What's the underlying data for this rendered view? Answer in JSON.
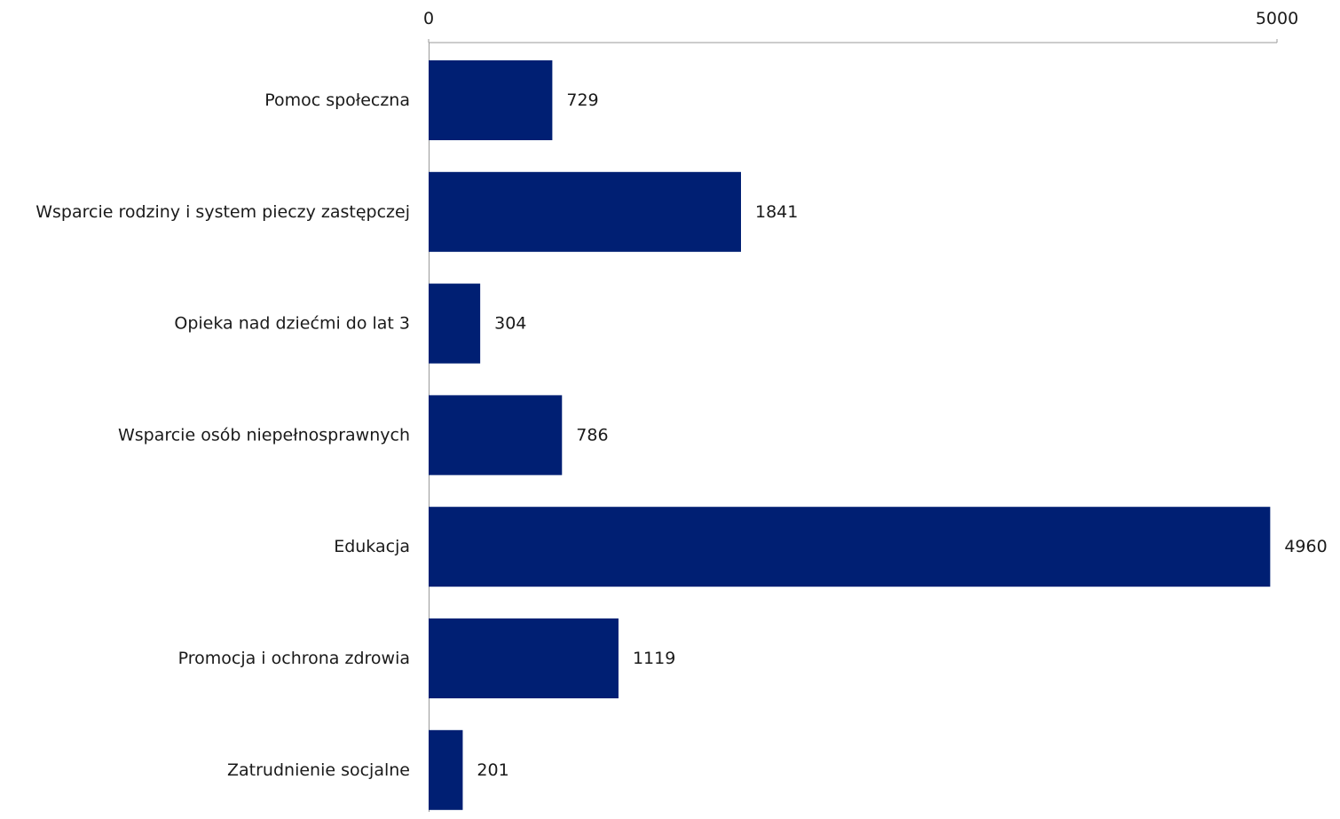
{
  "chart_data": {
    "type": "bar",
    "orientation": "horizontal",
    "title": "",
    "xlabel": "",
    "ylabel": "",
    "categories": [
      "Pomoc społeczna",
      "Wsparcie rodziny i system pieczy zastępczej",
      "Opieka nad dziećmi do lat 3",
      "Wsparcie osób niepełnosprawnych",
      "Edukacja",
      "Promocja i ochrona zdrowia",
      "Zatrudnienie socjalne"
    ],
    "values": [
      729,
      1841,
      304,
      786,
      4960,
      1119,
      201
    ],
    "xlim": [
      0,
      5000
    ],
    "ticks": [
      "0",
      "5000"
    ],
    "axis_position": "top",
    "grid": false,
    "legend": "none",
    "bar_color": "#001f73"
  }
}
